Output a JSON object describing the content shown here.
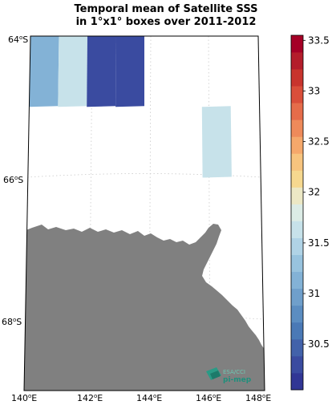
{
  "title": {
    "line1": "Temporal mean of Satellite SSS",
    "line2": "in 1°x1° boxes over 2011-2012"
  },
  "map": {
    "lat_labels": [
      {
        "deg": "64",
        "hemi": "S"
      },
      {
        "deg": "66",
        "hemi": "S"
      },
      {
        "deg": "68",
        "hemi": "S"
      }
    ],
    "lon_labels": [
      {
        "deg": "140",
        "hemi": "E"
      },
      {
        "deg": "142",
        "hemi": "E"
      },
      {
        "deg": "144",
        "hemi": "E"
      },
      {
        "deg": "146",
        "hemi": "E"
      },
      {
        "deg": "148",
        "hemi": "E"
      }
    ],
    "land_color": "#808080",
    "gridlines": "dotted",
    "boxes": [
      {
        "lon": 140,
        "lat": -64.5,
        "sss": 31.15
      },
      {
        "lon": 141,
        "lat": -64.5,
        "sss": 31.65
      },
      {
        "lon": 142,
        "lat": -64.5,
        "sss": 30.25
      },
      {
        "lon": 143,
        "lat": -64.5,
        "sss": 30.35
      },
      {
        "lon": 146,
        "lat": -65.5,
        "sss": 31.7
      }
    ]
  },
  "colorbar": {
    "min": 30.05,
    "max": 33.55,
    "ticks": [
      "30.5",
      "31",
      "31.5",
      "32",
      "32.5",
      "33",
      "33.5"
    ],
    "colors": [
      "#313695",
      "#3a4ba0",
      "#4262aa",
      "#4a79b6",
      "#5b8dc1",
      "#6f9fcb",
      "#83b2d6",
      "#98c3de",
      "#b0d3e6",
      "#c7e2ea",
      "#dcece6",
      "#ece8c5",
      "#f6d88f",
      "#f7c47e",
      "#f5a86b",
      "#ee8a5a",
      "#e56c4a",
      "#d94e3a",
      "#c8342d",
      "#b41d2b",
      "#a50026"
    ]
  },
  "logo": {
    "line1": "ESA/CCI",
    "line2": "pi-mep"
  }
}
